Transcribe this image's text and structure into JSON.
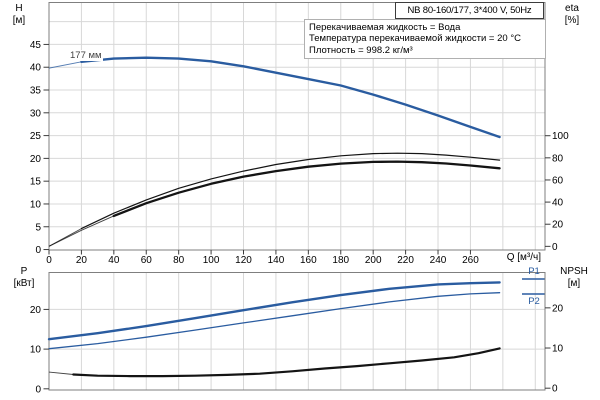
{
  "header": {
    "model_box": "NB 80-160/177, 3*400 V, 50Hz",
    "conditions": [
      "Перекачиваемая жидкость = Вода",
      "Температура перекачиваемой жидкости = 20 °C",
      "Плотность = 998.2 кг/м³"
    ]
  },
  "labels": {
    "h_name": "H",
    "h_unit": "[м]",
    "eta_name": "eta",
    "eta_unit": "[%]",
    "p_name": "P",
    "p_unit": "[кВт]",
    "npsh_name": "NPSH",
    "npsh_unit": "[м]",
    "q_label": "Q [м³/ч]",
    "impeller": "177 мм",
    "p1": "P1",
    "p2": "P2"
  },
  "colors": {
    "curve_blue": "#2a5ca0",
    "curve_black": "#141414",
    "grid": "#d8d8d8",
    "frame": "#7f7f7f",
    "tick": "#3c3c3c",
    "text": "#000000"
  },
  "chart_data": [
    {
      "id": "head-efficiency-chart",
      "type": "line",
      "title": "NB 80-160/177, 3*400 V, 50Hz",
      "xlabel": "Q [м³/ч]",
      "legend_position": "none",
      "grid": true,
      "x": {
        "lim": [
          0,
          306
        ],
        "ticks": [
          0,
          20,
          40,
          60,
          80,
          100,
          120,
          140,
          160,
          180,
          200,
          220,
          240,
          260
        ],
        "grid": [
          20,
          40,
          60,
          80,
          100,
          120,
          140,
          160,
          180,
          200,
          220,
          240,
          260,
          280,
          300
        ]
      },
      "left_axis": {
        "label": "H [м]",
        "lim": [
          -0.1,
          54.2
        ],
        "ticks": [
          0,
          5,
          10,
          15,
          20,
          25,
          30,
          35,
          40,
          45
        ],
        "grid": [
          5,
          10,
          15,
          20,
          25,
          30,
          35,
          40,
          45,
          50
        ]
      },
      "right_axis": {
        "label": "eta [%]",
        "lim": [
          -3.3,
          220.4
        ],
        "ticks": [
          0,
          20,
          40,
          60,
          80,
          100
        ]
      },
      "series": [
        {
          "name": "H impeller 177 мм",
          "axis": "left",
          "color": "blue",
          "width": 2.4,
          "thin_until": 34,
          "points": [
            [
              0,
              39.8
            ],
            [
              20,
              41.2
            ],
            [
              40,
              41.9
            ],
            [
              60,
              42.1
            ],
            [
              80,
              41.9
            ],
            [
              100,
              41.3
            ],
            [
              120,
              40.2
            ],
            [
              140,
              38.8
            ],
            [
              160,
              37.4
            ],
            [
              180,
              36.0
            ],
            [
              200,
              34.0
            ],
            [
              220,
              31.8
            ],
            [
              240,
              29.4
            ],
            [
              260,
              26.9
            ],
            [
              278,
              24.7
            ]
          ]
        },
        {
          "name": "eta total",
          "axis": "right",
          "color": "black",
          "width": 1.2,
          "thin_until": 26,
          "points": [
            [
              0,
              0
            ],
            [
              20,
              16
            ],
            [
              40,
              30
            ],
            [
              60,
              42
            ],
            [
              80,
              52.5
            ],
            [
              100,
              61
            ],
            [
              120,
              68
            ],
            [
              140,
              74
            ],
            [
              160,
              78.5
            ],
            [
              180,
              81.8
            ],
            [
              200,
              83.8
            ],
            [
              215,
              84.2
            ],
            [
              230,
              83.8
            ],
            [
              245,
              82.5
            ],
            [
              260,
              80.6
            ],
            [
              278,
              78
            ]
          ]
        },
        {
          "name": "eta pump",
          "axis": "right",
          "color": "black",
          "width": 2.3,
          "thin_until": 42,
          "points": [
            [
              0,
              0
            ],
            [
              20,
              14.5
            ],
            [
              40,
              27.5
            ],
            [
              60,
              39
            ],
            [
              80,
              48.5
            ],
            [
              100,
              56.5
            ],
            [
              120,
              63
            ],
            [
              140,
              68
            ],
            [
              160,
              72
            ],
            [
              180,
              74.8
            ],
            [
              200,
              76.3
            ],
            [
              215,
              76.6
            ],
            [
              230,
              76.1
            ],
            [
              245,
              74.9
            ],
            [
              260,
              73.1
            ],
            [
              278,
              70.5
            ]
          ]
        }
      ]
    },
    {
      "id": "power-npsh-chart",
      "type": "line",
      "title": "",
      "xlabel": "",
      "legend_position": "right-inside",
      "grid": true,
      "x": {
        "lim": [
          0,
          306
        ],
        "ticks": [],
        "grid": [
          20,
          40,
          60,
          80,
          100,
          120,
          140,
          160,
          180,
          200,
          220,
          240,
          260,
          280,
          300
        ]
      },
      "left_axis": {
        "label": "P [кВт]",
        "lim": [
          -0.3,
          29.3
        ],
        "ticks": [
          0,
          10,
          20
        ],
        "grid": [
          10,
          20
        ]
      },
      "right_axis": {
        "label": "NPSH [м]",
        "lim": [
          -0.45,
          28.8
        ],
        "ticks": [
          0,
          10,
          20
        ]
      },
      "series": [
        {
          "name": "P1",
          "axis": "left",
          "color": "blue",
          "width": 2.4,
          "thin_until": 24,
          "points": [
            [
              0,
              12.5
            ],
            [
              30,
              14.0
            ],
            [
              60,
              15.8
            ],
            [
              90,
              17.8
            ],
            [
              120,
              19.8
            ],
            [
              150,
              21.8
            ],
            [
              180,
              23.6
            ],
            [
              210,
              25.2
            ],
            [
              240,
              26.3
            ],
            [
              260,
              26.6
            ],
            [
              278,
              26.8
            ]
          ]
        },
        {
          "name": "P2",
          "axis": "left",
          "color": "blue",
          "width": 1.3,
          "thin_until": 24,
          "points": [
            [
              0,
              10.1
            ],
            [
              30,
              11.4
            ],
            [
              60,
              13.0
            ],
            [
              90,
              14.8
            ],
            [
              120,
              16.6
            ],
            [
              150,
              18.4
            ],
            [
              180,
              20.2
            ],
            [
              210,
              21.9
            ],
            [
              240,
              23.3
            ],
            [
              260,
              23.9
            ],
            [
              278,
              24.2
            ]
          ]
        },
        {
          "name": "NPSH",
          "axis": "right",
          "color": "black",
          "width": 2.2,
          "thin_until": 26,
          "points": [
            [
              0,
              4.0
            ],
            [
              15,
              3.4
            ],
            [
              30,
              3.1
            ],
            [
              50,
              3.0
            ],
            [
              70,
              3.0
            ],
            [
              90,
              3.1
            ],
            [
              110,
              3.3
            ],
            [
              130,
              3.6
            ],
            [
              150,
              4.2
            ],
            [
              170,
              4.9
            ],
            [
              190,
              5.5
            ],
            [
              210,
              6.2
            ],
            [
              230,
              6.9
            ],
            [
              250,
              7.7
            ],
            [
              265,
              8.7
            ],
            [
              278,
              9.9
            ]
          ]
        }
      ]
    }
  ]
}
